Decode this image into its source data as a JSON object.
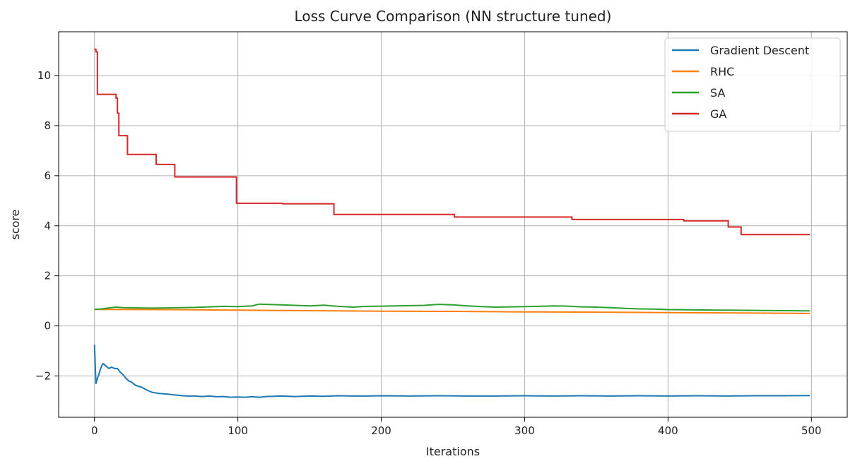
{
  "chart_data": {
    "type": "line",
    "title": "Loss Curve Comparison (NN structure tuned)",
    "xlabel": "Iterations",
    "ylabel": "score",
    "xlim": [
      -25,
      525
    ],
    "ylim": [
      -3.65,
      11.75
    ],
    "xticks": [
      0,
      100,
      200,
      300,
      400,
      500
    ],
    "yticks": [
      -2,
      0,
      2,
      4,
      6,
      8,
      10
    ],
    "ytick_labels": [
      "−2",
      "0",
      "2",
      "4",
      "6",
      "8",
      "10"
    ],
    "grid": true,
    "legend_position": "top-right",
    "series": [
      {
        "name": "Gradient Descent",
        "color": "#1f77b4",
        "x": [
          0,
          1,
          2,
          3,
          4,
          5,
          6,
          7,
          8,
          10,
          12,
          14,
          16,
          18,
          20,
          22,
          24,
          26,
          28,
          30,
          33,
          36,
          40,
          45,
          50,
          55,
          60,
          65,
          70,
          75,
          80,
          85,
          90,
          95,
          100,
          105,
          110,
          115,
          120,
          130,
          140,
          150,
          160,
          170,
          180,
          190,
          200,
          220,
          240,
          260,
          280,
          300,
          320,
          340,
          360,
          380,
          400,
          420,
          440,
          460,
          480,
          499
        ],
        "y": [
          -0.75,
          -2.3,
          -2.1,
          -1.95,
          -1.75,
          -1.6,
          -1.5,
          -1.55,
          -1.6,
          -1.7,
          -1.65,
          -1.7,
          -1.7,
          -1.85,
          -1.95,
          -2.1,
          -2.2,
          -2.25,
          -2.35,
          -2.4,
          -2.45,
          -2.55,
          -2.65,
          -2.7,
          -2.72,
          -2.75,
          -2.78,
          -2.8,
          -2.8,
          -2.82,
          -2.8,
          -2.83,
          -2.82,
          -2.85,
          -2.84,
          -2.85,
          -2.83,
          -2.85,
          -2.82,
          -2.8,
          -2.82,
          -2.8,
          -2.81,
          -2.79,
          -2.8,
          -2.8,
          -2.79,
          -2.8,
          -2.79,
          -2.8,
          -2.8,
          -2.79,
          -2.8,
          -2.79,
          -2.8,
          -2.79,
          -2.8,
          -2.79,
          -2.8,
          -2.79,
          -2.79,
          -2.78
        ]
      },
      {
        "name": "RHC",
        "color": "#ff7f0e",
        "x": [
          0,
          50,
          100,
          150,
          200,
          250,
          300,
          350,
          400,
          450,
          499
        ],
        "y": [
          0.66,
          0.65,
          0.63,
          0.61,
          0.59,
          0.58,
          0.56,
          0.55,
          0.53,
          0.52,
          0.5
        ]
      },
      {
        "name": "SA",
        "color": "#2ca02c",
        "x": [
          0,
          5,
          10,
          15,
          20,
          30,
          40,
          50,
          60,
          70,
          80,
          90,
          100,
          110,
          115,
          120,
          130,
          140,
          150,
          160,
          170,
          180,
          190,
          200,
          210,
          220,
          230,
          240,
          250,
          260,
          270,
          280,
          290,
          300,
          310,
          320,
          330,
          340,
          350,
          360,
          370,
          380,
          390,
          400,
          420,
          440,
          460,
          480,
          499
        ],
        "y": [
          0.66,
          0.68,
          0.72,
          0.75,
          0.73,
          0.72,
          0.71,
          0.72,
          0.73,
          0.74,
          0.76,
          0.78,
          0.77,
          0.8,
          0.87,
          0.86,
          0.84,
          0.82,
          0.8,
          0.83,
          0.78,
          0.75,
          0.78,
          0.79,
          0.8,
          0.81,
          0.82,
          0.86,
          0.84,
          0.8,
          0.77,
          0.75,
          0.76,
          0.77,
          0.78,
          0.8,
          0.79,
          0.76,
          0.75,
          0.73,
          0.7,
          0.68,
          0.67,
          0.65,
          0.64,
          0.63,
          0.62,
          0.61,
          0.6
        ]
      },
      {
        "name": "GA",
        "color": "#d62728",
        "step": true,
        "x": [
          0,
          1,
          2,
          15,
          16,
          17,
          23,
          43,
          56,
          99,
          131,
          167,
          251,
          333,
          411,
          442,
          451,
          499
        ],
        "y": [
          11.05,
          10.95,
          9.25,
          9.1,
          8.5,
          7.6,
          6.85,
          6.45,
          5.95,
          4.9,
          4.88,
          4.45,
          4.35,
          4.25,
          4.2,
          3.95,
          3.65,
          3.65
        ]
      }
    ]
  }
}
